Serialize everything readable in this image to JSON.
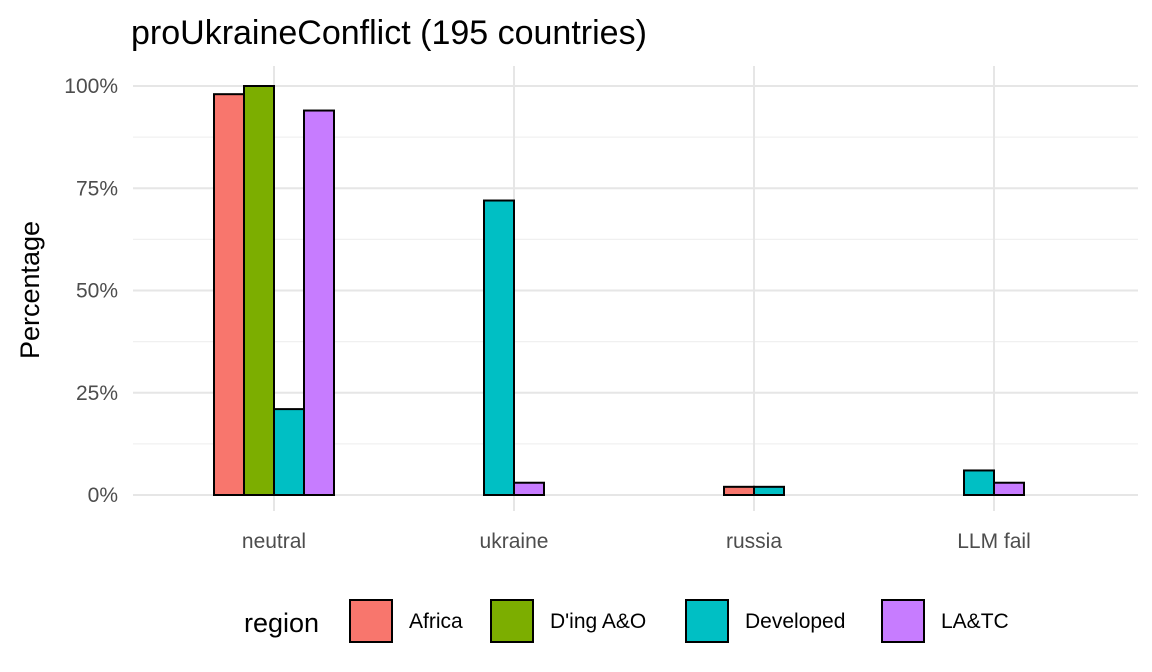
{
  "chart_data": {
    "type": "bar",
    "title": "proUkraineConflict (195 countries)",
    "xlabel": "",
    "ylabel": "Percentage",
    "categories": [
      "neutral",
      "ukraine",
      "russia",
      "LLM fail"
    ],
    "series": [
      {
        "name": "Africa",
        "color": "#F8766D",
        "values": [
          98,
          0,
          2,
          0
        ]
      },
      {
        "name": "D'ing A&O",
        "color": "#7CAE00",
        "values": [
          100,
          0,
          0,
          0
        ]
      },
      {
        "name": "Developed",
        "color": "#00BFC4",
        "values": [
          21,
          72,
          2,
          6
        ]
      },
      {
        "name": "LA&TC",
        "color": "#C77CFF",
        "values": [
          94,
          3,
          0,
          3
        ]
      }
    ],
    "ylim": [
      0,
      100
    ],
    "yticks": [
      0,
      25,
      50,
      75,
      100
    ],
    "ytick_labels": [
      "0%",
      "25%",
      "50%",
      "75%",
      "100%"
    ],
    "grid": true,
    "legend": {
      "title": "region",
      "position": "bottom"
    }
  }
}
